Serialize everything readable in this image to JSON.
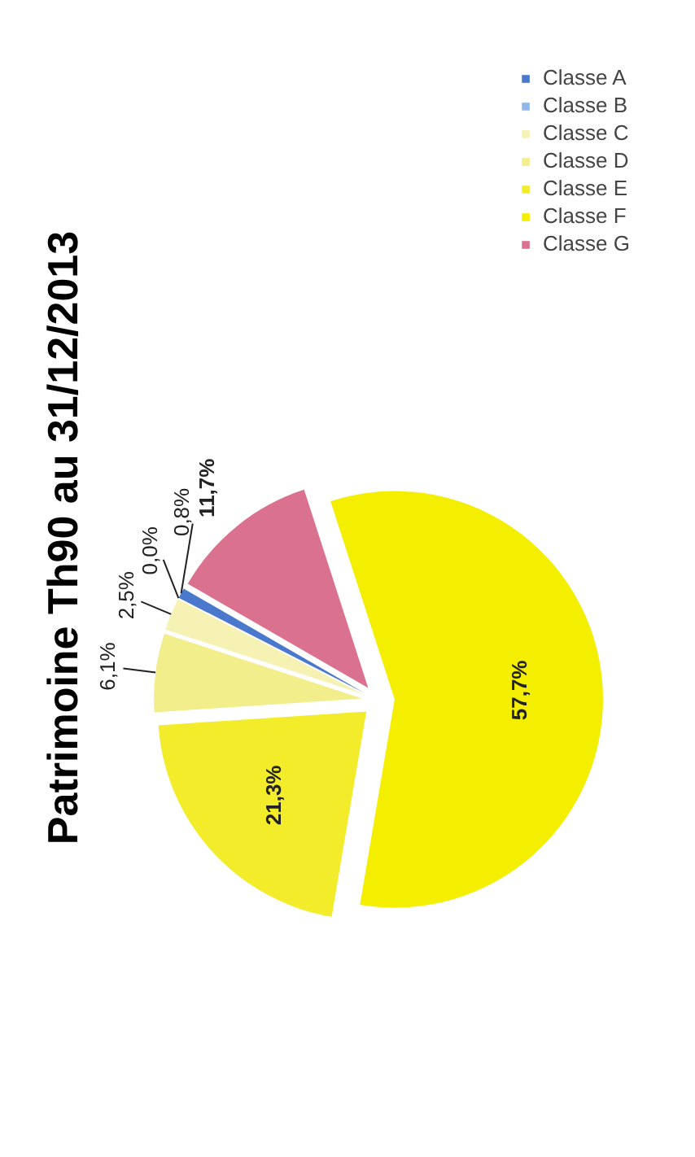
{
  "chart_data": {
    "type": "pie",
    "title": "Patrimoine Th90 au 31/12/2013",
    "categories": [
      "Classe A",
      "Classe B",
      "Classe C",
      "Classe D",
      "Classe E",
      "Classe F",
      "Classe G"
    ],
    "values": [
      0.8,
      0.0,
      2.5,
      6.1,
      21.3,
      57.7,
      11.7
    ],
    "colors": [
      "#4a78cc",
      "#8fb8e8",
      "#f6f2b4",
      "#f3ee8c",
      "#f2ec2a",
      "#f4ee00",
      "#d9718f"
    ],
    "value_labels": [
      "0,8%",
      "0,0%",
      "2,5%",
      "6,1%",
      "21,3%",
      "57,7%",
      "11,7%"
    ],
    "legend": "right"
  }
}
